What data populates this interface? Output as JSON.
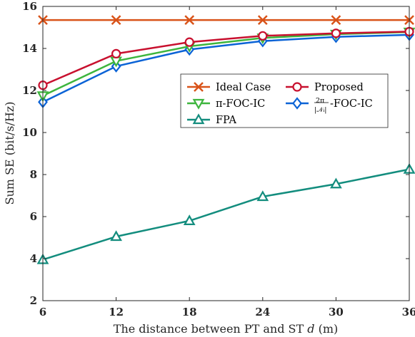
{
  "chart_data": {
    "type": "line",
    "xlabel": "The distance between PT and ST d (m)",
    "xlabel_parts": [
      "The distance between PT and ST ",
      "d",
      " (m)"
    ],
    "ylabel": "Sum SE (bit/s/Hz)",
    "x": [
      6,
      12,
      18,
      24,
      30,
      36
    ],
    "xlim": [
      6,
      36
    ],
    "ylim": [
      2,
      16
    ],
    "xticks": [
      6,
      12,
      18,
      24,
      30,
      36
    ],
    "yticks": [
      2,
      4,
      6,
      8,
      10,
      12,
      14,
      16
    ],
    "grid": false,
    "legend_position": "center-right",
    "series": [
      {
        "name": "Ideal Case",
        "marker": "x",
        "color": "#D95319",
        "values": [
          15.35,
          15.35,
          15.35,
          15.35,
          15.35,
          15.35
        ]
      },
      {
        "name": "Proposed",
        "marker": "circle",
        "color": "#C8102E",
        "values": [
          12.25,
          13.75,
          14.3,
          14.6,
          14.72,
          14.8
        ]
      },
      {
        "name": "π-FOC-IC",
        "marker": "triangle-down",
        "color": "#3DB53D",
        "values": [
          11.75,
          13.4,
          14.1,
          14.5,
          14.68,
          14.78
        ]
      },
      {
        "name": "2π/|N_i|-FOC-IC",
        "marker": "diamond",
        "color": "#0B63D6",
        "values": [
          11.45,
          13.15,
          13.95,
          14.35,
          14.55,
          14.65
        ]
      },
      {
        "name": "FPA",
        "marker": "triangle-up",
        "color": "#138D7E",
        "values": [
          3.95,
          5.05,
          5.8,
          6.95,
          7.55,
          8.25
        ]
      }
    ]
  }
}
